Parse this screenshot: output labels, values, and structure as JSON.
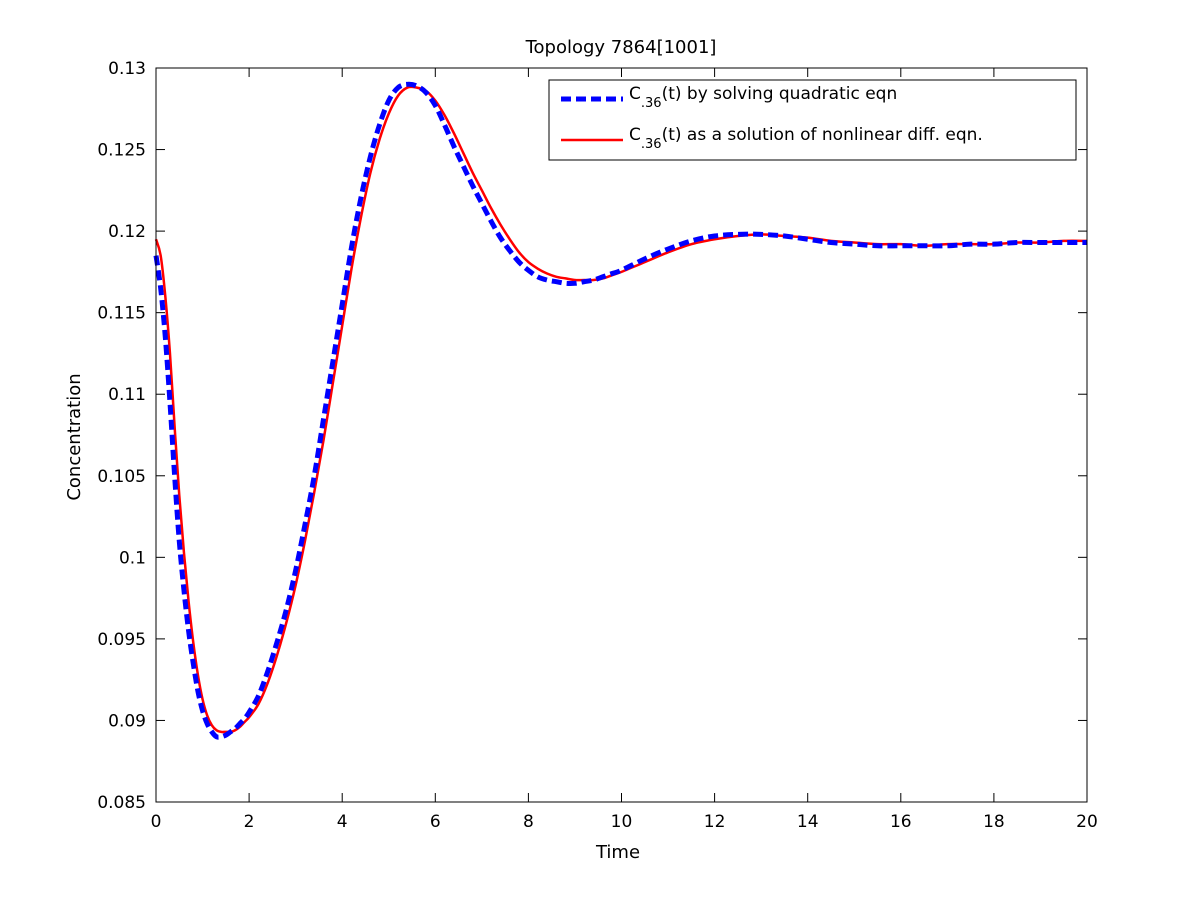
{
  "chart_data": {
    "type": "line",
    "title": "Topology 7864[1001]",
    "xlabel": "Time",
    "ylabel": "Concentration",
    "xlim": [
      0,
      20
    ],
    "ylim": [
      0.085,
      0.13
    ],
    "xticks": [
      0,
      2,
      4,
      6,
      8,
      10,
      12,
      14,
      16,
      18,
      20
    ],
    "xtick_labels": [
      "0",
      "2",
      "4",
      "6",
      "8",
      "10",
      "12",
      "14",
      "16",
      "18",
      "20"
    ],
    "yticks": [
      0.085,
      0.09,
      0.095,
      0.1,
      0.105,
      0.11,
      0.115,
      0.12,
      0.125,
      0.13
    ],
    "ytick_labels": [
      "0.085",
      "0.09",
      "0.095",
      "0.1",
      "0.105",
      "0.11",
      "0.115",
      "0.12",
      "0.125",
      "0.13"
    ],
    "grid": false,
    "legend_position": "top-right",
    "series": [
      {
        "name": "C.36(t) by solving quadratic eqn",
        "name_parts": [
          "C",
          ".36",
          "(t) by solving quadratic eqn"
        ],
        "color": "#0000ff",
        "style": "dashed",
        "x": [
          0,
          0.1,
          0.2,
          0.3,
          0.4,
          0.5,
          0.6,
          0.7,
          0.8,
          0.9,
          1.0,
          1.1,
          1.2,
          1.3,
          1.4,
          1.5,
          1.6,
          1.7,
          1.8,
          1.9,
          2.0,
          2.2,
          2.4,
          2.6,
          2.8,
          3.0,
          3.2,
          3.4,
          3.6,
          3.8,
          4.0,
          4.2,
          4.4,
          4.6,
          4.8,
          5.0,
          5.2,
          5.4,
          5.6,
          5.8,
          6.0,
          6.2,
          6.4,
          6.6,
          6.8,
          7.0,
          7.2,
          7.4,
          7.6,
          7.8,
          8.0,
          8.2,
          8.4,
          8.6,
          8.8,
          9.0,
          9.2,
          9.4,
          9.6,
          9.8,
          10.0,
          10.5,
          11.0,
          11.5,
          12.0,
          12.5,
          13.0,
          13.5,
          14.0,
          14.5,
          15.0,
          15.5,
          16.0,
          16.5,
          17.0,
          17.5,
          18.0,
          18.5,
          19.0,
          19.5,
          20.0
        ],
        "y": [
          0.1185,
          0.1165,
          0.1135,
          0.1095,
          0.105,
          0.101,
          0.098,
          0.0955,
          0.0935,
          0.0918,
          0.0906,
          0.0898,
          0.0893,
          0.089,
          0.089,
          0.0891,
          0.0893,
          0.0895,
          0.0898,
          0.0901,
          0.0905,
          0.0915,
          0.093,
          0.0948,
          0.0968,
          0.0992,
          0.102,
          0.105,
          0.1085,
          0.112,
          0.1155,
          0.119,
          0.122,
          0.1245,
          0.1265,
          0.128,
          0.1288,
          0.129,
          0.1289,
          0.1285,
          0.1277,
          0.1265,
          0.1252,
          0.124,
          0.1228,
          0.1217,
          0.1206,
          0.1196,
          0.1188,
          0.1181,
          0.1176,
          0.1172,
          0.117,
          0.1169,
          0.1168,
          0.1168,
          0.1169,
          0.117,
          0.1172,
          0.1174,
          0.1176,
          0.1183,
          0.1189,
          0.1194,
          0.1197,
          0.1198,
          0.1198,
          0.1197,
          0.1195,
          0.1193,
          0.1192,
          0.1191,
          0.1191,
          0.1191,
          0.1191,
          0.1192,
          0.1192,
          0.1193,
          0.1193,
          0.1193,
          0.1193
        ]
      },
      {
        "name": "C.36(t) as a solution of nonlinear diff. eqn.",
        "name_parts": [
          "C",
          ".36",
          "(t) as a solution of nonlinear diff. eqn."
        ],
        "color": "#ff0000",
        "style": "solid",
        "x": [
          0,
          0.1,
          0.2,
          0.3,
          0.4,
          0.5,
          0.6,
          0.7,
          0.8,
          0.9,
          1.0,
          1.1,
          1.2,
          1.3,
          1.4,
          1.5,
          1.6,
          1.7,
          1.8,
          1.9,
          2.0,
          2.2,
          2.4,
          2.6,
          2.8,
          3.0,
          3.2,
          3.4,
          3.6,
          3.8,
          4.0,
          4.2,
          4.4,
          4.6,
          4.8,
          5.0,
          5.2,
          5.4,
          5.6,
          5.8,
          6.0,
          6.2,
          6.4,
          6.6,
          6.8,
          7.0,
          7.2,
          7.4,
          7.6,
          7.8,
          8.0,
          8.2,
          8.4,
          8.6,
          8.8,
          9.0,
          9.2,
          9.4,
          9.6,
          9.8,
          10.0,
          10.5,
          11.0,
          11.5,
          12.0,
          12.5,
          13.0,
          13.5,
          14.0,
          14.5,
          15.0,
          15.5,
          16.0,
          16.5,
          17.0,
          17.5,
          18.0,
          18.5,
          19.0,
          19.5,
          20.0
        ],
        "y": [
          0.1195,
          0.1185,
          0.116,
          0.1125,
          0.108,
          0.1038,
          0.1003,
          0.0973,
          0.0948,
          0.0928,
          0.0913,
          0.0903,
          0.0897,
          0.0894,
          0.0893,
          0.0893,
          0.0893,
          0.0894,
          0.0896,
          0.0899,
          0.0902,
          0.091,
          0.0923,
          0.094,
          0.096,
          0.0983,
          0.101,
          0.104,
          0.1072,
          0.1107,
          0.1142,
          0.1177,
          0.1208,
          0.1235,
          0.1256,
          0.1272,
          0.1283,
          0.1288,
          0.1288,
          0.1286,
          0.128,
          0.1271,
          0.126,
          0.1248,
          0.1236,
          0.1225,
          0.1214,
          0.1204,
          0.1195,
          0.1187,
          0.1181,
          0.1177,
          0.1174,
          0.1172,
          0.1171,
          0.117,
          0.117,
          0.117,
          0.1171,
          0.1173,
          0.1175,
          0.1181,
          0.1187,
          0.1192,
          0.1195,
          0.1197,
          0.1198,
          0.1197,
          0.1196,
          0.1194,
          0.1193,
          0.1192,
          0.1192,
          0.1191,
          0.1192,
          0.1192,
          0.1192,
          0.1193,
          0.1193,
          0.1194,
          0.1194
        ]
      }
    ]
  }
}
